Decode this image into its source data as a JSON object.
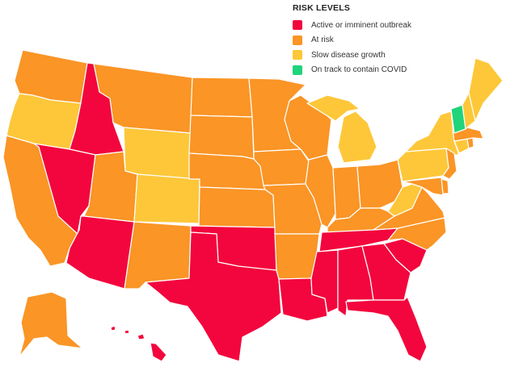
{
  "legend": {
    "title": "RISK LEVELS",
    "items": [
      {
        "key": "outbreak",
        "label": "Active or imminent outbreak",
        "color": "#f2063d"
      },
      {
        "key": "risk",
        "label": "At risk",
        "color": "#fa9526"
      },
      {
        "key": "slow",
        "label": "Slow disease growth",
        "color": "#fdc739"
      },
      {
        "key": "track",
        "label": "On track to contain COVID",
        "color": "#1fd47a"
      }
    ]
  },
  "states": [
    {
      "name": "Washington",
      "level": "risk"
    },
    {
      "name": "Oregon",
      "level": "slow"
    },
    {
      "name": "California",
      "level": "risk"
    },
    {
      "name": "Idaho",
      "level": "outbreak"
    },
    {
      "name": "Nevada",
      "level": "outbreak"
    },
    {
      "name": "Montana",
      "level": "risk"
    },
    {
      "name": "Wyoming",
      "level": "slow"
    },
    {
      "name": "Utah",
      "level": "risk"
    },
    {
      "name": "Arizona",
      "level": "outbreak"
    },
    {
      "name": "Colorado",
      "level": "slow"
    },
    {
      "name": "New Mexico",
      "level": "risk"
    },
    {
      "name": "North Dakota",
      "level": "risk"
    },
    {
      "name": "South Dakota",
      "level": "risk"
    },
    {
      "name": "Nebraska",
      "level": "risk"
    },
    {
      "name": "Kansas",
      "level": "risk"
    },
    {
      "name": "Oklahoma",
      "level": "outbreak"
    },
    {
      "name": "Texas",
      "level": "outbreak"
    },
    {
      "name": "Minnesota",
      "level": "risk"
    },
    {
      "name": "Iowa",
      "level": "risk"
    },
    {
      "name": "Missouri",
      "level": "risk"
    },
    {
      "name": "Arkansas",
      "level": "risk"
    },
    {
      "name": "Louisiana",
      "level": "outbreak"
    },
    {
      "name": "Wisconsin",
      "level": "risk"
    },
    {
      "name": "Illinois",
      "level": "risk"
    },
    {
      "name": "Michigan",
      "level": "slow"
    },
    {
      "name": "Indiana",
      "level": "risk"
    },
    {
      "name": "Ohio",
      "level": "risk"
    },
    {
      "name": "Kentucky",
      "level": "risk"
    },
    {
      "name": "Tennessee",
      "level": "outbreak"
    },
    {
      "name": "Mississippi",
      "level": "outbreak"
    },
    {
      "name": "Alabama",
      "level": "outbreak"
    },
    {
      "name": "Georgia",
      "level": "outbreak"
    },
    {
      "name": "Florida",
      "level": "outbreak"
    },
    {
      "name": "South Carolina",
      "level": "outbreak"
    },
    {
      "name": "North Carolina",
      "level": "risk"
    },
    {
      "name": "Virginia",
      "level": "risk"
    },
    {
      "name": "West Virginia",
      "level": "slow"
    },
    {
      "name": "Pennsylvania",
      "level": "slow"
    },
    {
      "name": "New York",
      "level": "slow"
    },
    {
      "name": "New Jersey",
      "level": "risk"
    },
    {
      "name": "Delaware",
      "level": "risk"
    },
    {
      "name": "Maryland",
      "level": "risk"
    },
    {
      "name": "Connecticut",
      "level": "slow"
    },
    {
      "name": "Rhode Island",
      "level": "risk"
    },
    {
      "name": "Massachusetts",
      "level": "risk"
    },
    {
      "name": "Vermont",
      "level": "track"
    },
    {
      "name": "New Hampshire",
      "level": "slow"
    },
    {
      "name": "Maine",
      "level": "slow"
    },
    {
      "name": "Alaska",
      "level": "risk"
    },
    {
      "name": "Hawaii",
      "level": "outbreak"
    }
  ]
}
